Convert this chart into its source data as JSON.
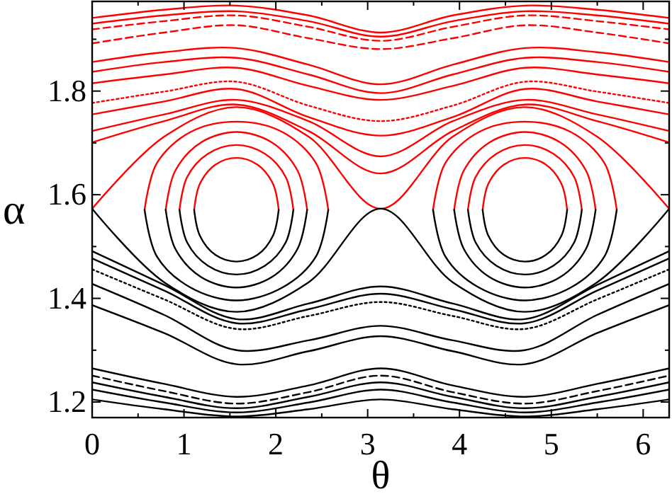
{
  "chart_data": {
    "type": "line",
    "xlabel": "θ",
    "ylabel": "α",
    "xlim": [
      0,
      6.283
    ],
    "ylim": [
      1.17,
      1.973
    ],
    "xticks": [
      0,
      {
        "value": 0.5,
        "label": null
      },
      1,
      {
        "value": 1.5,
        "label": null
      },
      2,
      {
        "value": 2.5,
        "label": null
      },
      3,
      {
        "value": 3.5,
        "label": null
      },
      4,
      {
        "value": 4.5,
        "label": null
      },
      5,
      {
        "value": 5.5,
        "label": null
      },
      6
    ],
    "yticks": [
      1.2,
      {
        "value": 1.3,
        "label": null
      },
      1.4,
      {
        "value": 1.5,
        "label": null
      },
      1.6,
      {
        "value": 1.7,
        "label": null
      },
      1.8,
      {
        "value": 1.9,
        "label": null
      }
    ],
    "x": [
      0,
      0.785,
      1.571,
      2.356,
      3.142,
      3.927,
      4.712,
      5.498,
      6.283
    ],
    "grid": false,
    "marker": "none",
    "series": [
      {
        "color": "#ff0000",
        "values": [
          1.941,
          1.957,
          1.965,
          1.946,
          1.913,
          1.946,
          1.965,
          1.957,
          1.941
        ]
      },
      {
        "color": "#ff0000",
        "values": [
          1.93,
          1.946,
          1.954,
          1.935,
          1.905,
          1.935,
          1.954,
          1.946,
          1.93
        ]
      },
      {
        "color": "#ff0000",
        "line_style": "dashed",
        "values": [
          1.919,
          1.935,
          1.946,
          1.924,
          1.897,
          1.924,
          1.946,
          1.935,
          1.919
        ]
      },
      {
        "color": "#ff0000",
        "line_style": "dashed",
        "values": [
          1.892,
          1.913,
          1.927,
          1.902,
          1.881,
          1.902,
          1.927,
          1.913,
          1.892
        ]
      },
      {
        "color": "#ff0000",
        "values": [
          1.856,
          1.875,
          1.883,
          1.851,
          1.813,
          1.851,
          1.883,
          1.875,
          1.856
        ]
      },
      {
        "color": "#ff0000",
        "values": [
          1.837,
          1.856,
          1.864,
          1.832,
          1.796,
          1.832,
          1.864,
          1.856,
          1.837
        ]
      },
      {
        "color": "#ff0000",
        "values": [
          1.815,
          1.832,
          1.845,
          1.81,
          1.783,
          1.81,
          1.845,
          1.832,
          1.815
        ]
      },
      {
        "color": "#ff0000",
        "line_style": "dotted",
        "values": [
          1.777,
          1.799,
          1.818,
          1.772,
          1.742,
          1.772,
          1.818,
          1.799,
          1.777
        ]
      },
      {
        "color": "#ff0000",
        "values": [
          1.755,
          1.78,
          1.804,
          1.75,
          1.714,
          1.75,
          1.804,
          1.78,
          1.755
        ]
      },
      {
        "color": "#ff0000",
        "values": [
          1.723,
          1.755,
          1.783,
          1.742,
          1.674,
          1.742,
          1.783,
          1.755,
          1.723
        ]
      },
      {
        "color": "#ff0000",
        "values": [
          1.701,
          1.742,
          1.774,
          1.723,
          1.641,
          1.723,
          1.774,
          1.742,
          1.701
        ]
      },
      {
        "color": "#ff0000",
        "values": [
          1.573,
          1.712,
          1.769,
          1.712,
          1.573,
          1.712,
          1.769,
          1.712,
          1.573
        ]
      },
      {
        "color": "#000000",
        "values": [
          1.573,
          1.431,
          1.374,
          1.431,
          1.573,
          1.431,
          1.374,
          1.431,
          1.573
        ]
      },
      {
        "color": "#000000",
        "values": [
          1.491,
          1.426,
          1.36,
          1.39,
          1.423,
          1.39,
          1.36,
          1.426,
          1.491
        ]
      },
      {
        "color": "#000000",
        "values": [
          1.477,
          1.415,
          1.352,
          1.379,
          1.409,
          1.379,
          1.352,
          1.415,
          1.477
        ]
      },
      {
        "color": "#000000",
        "line_style": "dotted",
        "values": [
          1.456,
          1.398,
          1.341,
          1.366,
          1.393,
          1.366,
          1.341,
          1.398,
          1.456
        ]
      },
      {
        "color": "#000000",
        "values": [
          1.428,
          1.368,
          1.3,
          1.319,
          1.347,
          1.319,
          1.3,
          1.368,
          1.428
        ]
      },
      {
        "color": "#000000",
        "values": [
          1.387,
          1.333,
          1.273,
          1.298,
          1.327,
          1.298,
          1.273,
          1.333,
          1.387
        ]
      },
      {
        "color": "#000000",
        "values": [
          1.265,
          1.235,
          1.21,
          1.232,
          1.265,
          1.232,
          1.21,
          1.235,
          1.265
        ]
      },
      {
        "color": "#000000",
        "line_style": "dashed",
        "values": [
          1.251,
          1.221,
          1.197,
          1.219,
          1.251,
          1.219,
          1.197,
          1.221,
          1.251
        ]
      },
      {
        "color": "#000000",
        "values": [
          1.238,
          1.21,
          1.188,
          1.21,
          1.238,
          1.21,
          1.188,
          1.21,
          1.238
        ]
      },
      {
        "color": "#000000",
        "values": [
          1.224,
          1.199,
          1.18,
          1.199,
          1.224,
          1.199,
          1.18,
          1.199,
          1.224
        ]
      },
      {
        "color": "#000000",
        "values": [
          1.205,
          1.186,
          1.172,
          1.186,
          1.205,
          1.186,
          1.172,
          1.186,
          1.205
        ]
      },
      {
        "color": "#ff0000",
        "x": [
          1.111,
          1.173,
          1.341,
          1.571,
          1.801,
          1.969,
          2.031
        ],
        "values": [
          1.571,
          1.621,
          1.658,
          1.671,
          1.658,
          1.621,
          1.571
        ]
      },
      {
        "color": "#000000",
        "x": [
          1.111,
          1.173,
          1.341,
          1.571,
          1.801,
          1.969,
          2.031
        ],
        "values": [
          1.571,
          1.521,
          1.484,
          1.471,
          1.484,
          1.521,
          1.571
        ]
      },
      {
        "color": "#ff0000",
        "x": [
          0.951,
          1.034,
          1.261,
          1.571,
          1.881,
          2.108,
          2.191
        ],
        "values": [
          1.571,
          1.634,
          1.679,
          1.696,
          1.679,
          1.634,
          1.571
        ]
      },
      {
        "color": "#000000",
        "x": [
          0.951,
          1.034,
          1.261,
          1.571,
          1.881,
          2.108,
          2.191
        ],
        "values": [
          1.571,
          1.508,
          1.463,
          1.446,
          1.463,
          1.508,
          1.571
        ]
      },
      {
        "color": "#ff0000",
        "x": [
          0.801,
          0.904,
          1.186,
          1.571,
          1.956,
          2.238,
          2.341
        ],
        "values": [
          1.571,
          1.646,
          1.701,
          1.721,
          1.701,
          1.646,
          1.571
        ]
      },
      {
        "color": "#000000",
        "x": [
          0.801,
          0.904,
          1.186,
          1.571,
          1.956,
          2.238,
          2.341
        ],
        "values": [
          1.571,
          1.496,
          1.441,
          1.421,
          1.441,
          1.496,
          1.571
        ]
      },
      {
        "color": "#ff0000",
        "x": [
          0.571,
          0.705,
          1.071,
          1.571,
          2.071,
          2.437,
          2.571
        ],
        "values": [
          1.571,
          1.661,
          1.721,
          1.741,
          1.721,
          1.661,
          1.571
        ]
      },
      {
        "color": "#000000",
        "x": [
          0.571,
          0.705,
          1.071,
          1.571,
          2.071,
          2.437,
          2.571
        ],
        "values": [
          1.571,
          1.481,
          1.421,
          1.396,
          1.421,
          1.481,
          1.571
        ]
      },
      {
        "color": "#ff0000",
        "x": [
          4.252,
          4.314,
          4.482,
          4.712,
          4.942,
          5.11,
          5.172
        ],
        "values": [
          1.571,
          1.621,
          1.658,
          1.671,
          1.658,
          1.621,
          1.571
        ]
      },
      {
        "color": "#000000",
        "x": [
          4.252,
          4.314,
          4.482,
          4.712,
          4.942,
          5.11,
          5.172
        ],
        "values": [
          1.571,
          1.521,
          1.484,
          1.471,
          1.484,
          1.521,
          1.571
        ]
      },
      {
        "color": "#ff0000",
        "x": [
          4.092,
          4.175,
          4.402,
          4.712,
          5.022,
          5.249,
          5.332
        ],
        "values": [
          1.571,
          1.634,
          1.679,
          1.696,
          1.679,
          1.634,
          1.571
        ]
      },
      {
        "color": "#000000",
        "x": [
          4.092,
          4.175,
          4.402,
          4.712,
          5.022,
          5.249,
          5.332
        ],
        "values": [
          1.571,
          1.508,
          1.463,
          1.446,
          1.463,
          1.508,
          1.571
        ]
      },
      {
        "color": "#ff0000",
        "x": [
          3.942,
          4.045,
          4.327,
          4.712,
          5.097,
          5.379,
          5.482
        ],
        "values": [
          1.571,
          1.646,
          1.701,
          1.721,
          1.701,
          1.646,
          1.571
        ]
      },
      {
        "color": "#000000",
        "x": [
          3.942,
          4.045,
          4.327,
          4.712,
          5.097,
          5.379,
          5.482
        ],
        "values": [
          1.571,
          1.496,
          1.441,
          1.421,
          1.441,
          1.496,
          1.571
        ]
      },
      {
        "color": "#ff0000",
        "x": [
          3.712,
          3.846,
          4.212,
          4.712,
          5.212,
          5.578,
          5.712
        ],
        "values": [
          1.571,
          1.661,
          1.721,
          1.741,
          1.721,
          1.661,
          1.571
        ]
      },
      {
        "color": "#000000",
        "x": [
          3.712,
          3.846,
          4.212,
          4.712,
          5.212,
          5.578,
          5.712
        ],
        "values": [
          1.571,
          1.481,
          1.421,
          1.396,
          1.421,
          1.481,
          1.571
        ]
      }
    ]
  }
}
